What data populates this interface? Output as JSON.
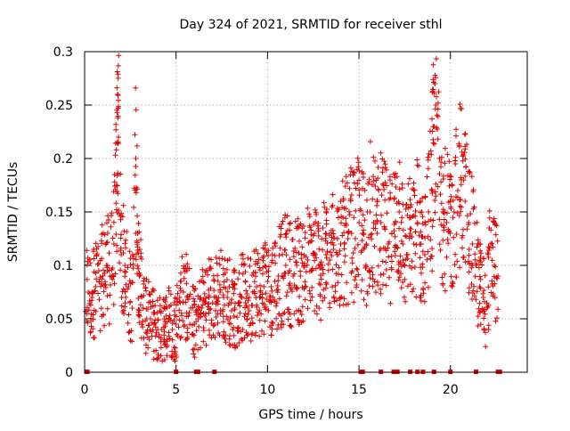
{
  "chart_data": {
    "type": "scatter",
    "title": "Day 324 of 2021, SRMTID for receiver sthl",
    "xlabel": "GPS time / hours",
    "ylabel": "SRMTID / TECUs",
    "xlim": [
      0,
      24.2
    ],
    "ylim": [
      0,
      0.3
    ],
    "x_ticks": [
      0,
      5,
      10,
      15,
      20
    ],
    "x_tick_labels": [
      "0",
      "5",
      "10",
      "15",
      "20"
    ],
    "y_ticks": [
      0,
      0.05,
      0.1,
      0.15,
      0.2,
      0.25,
      0.3
    ],
    "y_tick_labels": [
      "0",
      "0.05",
      "0.1",
      "0.15",
      "0.2",
      "0.25",
      "0.3"
    ],
    "grid": true,
    "marker": "plus",
    "color": "#e00000",
    "series": [
      {
        "name": "SRMTID",
        "x": [
          0.0,
          0.2,
          0.4,
          0.6,
          0.8,
          1.0,
          1.2,
          1.4,
          1.6,
          1.75,
          1.8,
          1.85,
          2.0,
          2.2,
          2.4,
          2.6,
          2.8,
          2.9,
          3.0,
          3.2,
          3.4,
          3.6,
          3.8,
          4.0,
          4.2,
          4.4,
          4.6,
          4.8,
          5.0,
          5.2,
          5.4,
          5.6,
          5.8,
          6.0,
          6.2,
          6.4,
          6.6,
          6.8,
          7.0,
          7.2,
          7.4,
          7.6,
          7.8,
          8.0,
          8.2,
          8.4,
          8.6,
          8.8,
          9.0,
          9.2,
          9.4,
          9.6,
          9.8,
          10.0,
          10.2,
          10.4,
          10.6,
          10.8,
          11.0,
          11.2,
          11.4,
          11.6,
          11.8,
          12.0,
          12.2,
          12.4,
          12.6,
          12.8,
          13.0,
          13.2,
          13.4,
          13.6,
          13.8,
          14.0,
          14.2,
          14.4,
          14.6,
          14.8,
          15.0,
          15.2,
          15.4,
          15.6,
          15.8,
          16.0,
          16.2,
          16.4,
          16.6,
          16.8,
          17.0,
          17.2,
          17.4,
          17.6,
          17.8,
          18.0,
          18.2,
          18.4,
          18.6,
          18.8,
          19.0,
          19.1,
          19.2,
          19.4,
          19.6,
          19.8,
          20.0,
          20.2,
          20.4,
          20.6,
          20.8,
          21.0,
          21.2,
          21.4,
          21.6,
          21.8,
          22.0,
          22.2,
          22.4,
          22.6
        ],
        "y": [
          0.065,
          0.075,
          0.07,
          0.08,
          0.085,
          0.09,
          0.1,
          0.09,
          0.12,
          0.175,
          0.26,
          0.22,
          0.11,
          0.1,
          0.08,
          0.06,
          0.2,
          0.13,
          0.09,
          0.06,
          0.05,
          0.05,
          0.045,
          0.04,
          0.04,
          0.045,
          0.05,
          0.04,
          0.045,
          0.07,
          0.075,
          0.07,
          0.06,
          0.045,
          0.05,
          0.06,
          0.065,
          0.07,
          0.065,
          0.07,
          0.075,
          0.07,
          0.07,
          0.065,
          0.06,
          0.065,
          0.07,
          0.065,
          0.07,
          0.075,
          0.08,
          0.075,
          0.08,
          0.085,
          0.08,
          0.085,
          0.09,
          0.09,
          0.1,
          0.095,
          0.09,
          0.1,
          0.09,
          0.1,
          0.105,
          0.095,
          0.11,
          0.1,
          0.1,
          0.11,
          0.105,
          0.115,
          0.11,
          0.12,
          0.12,
          0.125,
          0.13,
          0.125,
          0.14,
          0.13,
          0.12,
          0.15,
          0.14,
          0.13,
          0.14,
          0.135,
          0.12,
          0.13,
          0.14,
          0.15,
          0.12,
          0.11,
          0.13,
          0.12,
          0.14,
          0.12,
          0.11,
          0.15,
          0.17,
          0.23,
          0.25,
          0.2,
          0.15,
          0.14,
          0.13,
          0.15,
          0.17,
          0.18,
          0.16,
          0.14,
          0.12,
          0.1,
          0.08,
          0.07,
          0.06,
          0.12,
          0.1,
          0.09
        ]
      }
    ],
    "zero_markers_x": [
      0.1,
      0.15,
      5.0,
      6.1,
      6.2,
      7.1,
      15.1,
      15.2,
      16.2,
      16.9,
      17.0,
      17.1,
      17.8,
      18.2,
      18.5,
      19.1,
      20.0,
      21.4,
      22.6,
      22.7
    ]
  }
}
